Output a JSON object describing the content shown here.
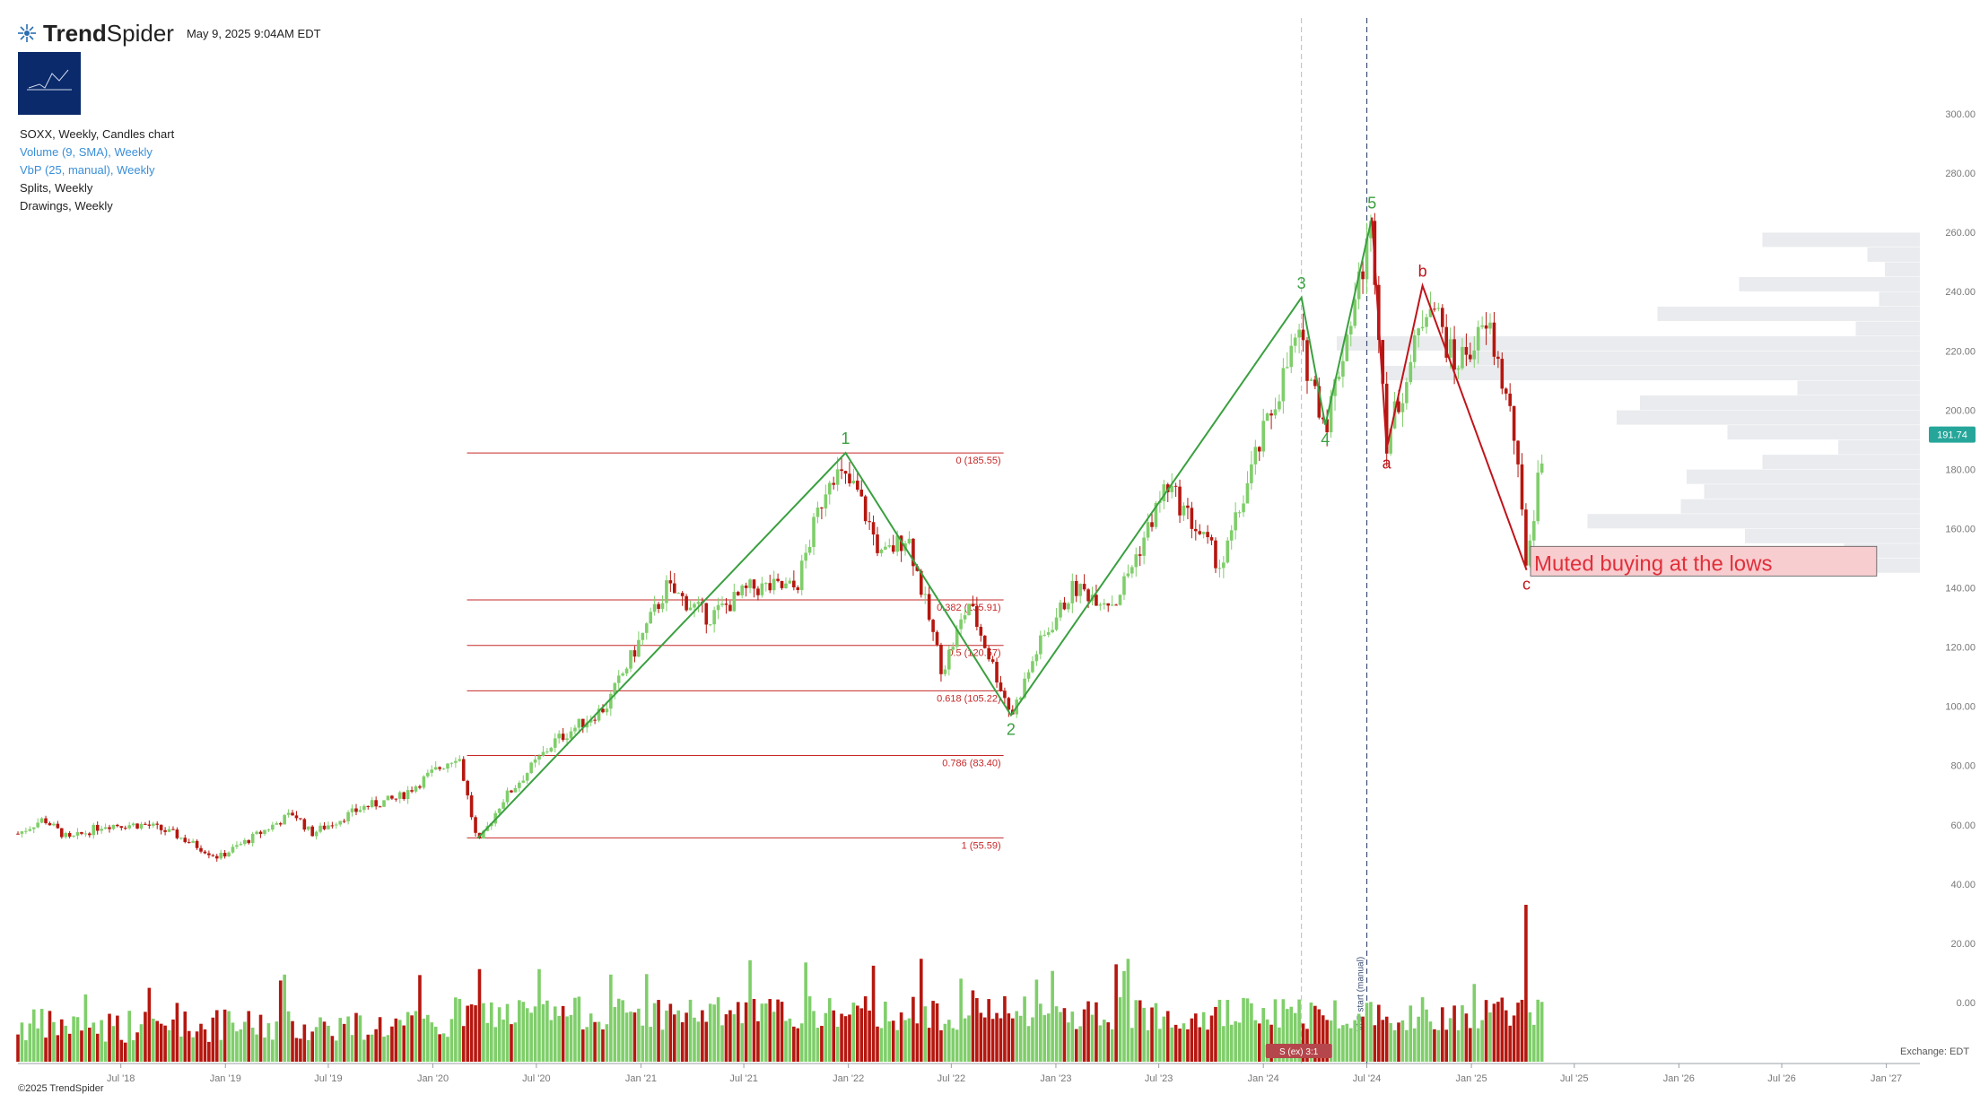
{
  "header": {
    "brand_bold": "Trend",
    "brand_light": "Spider",
    "timestamp": "May 9, 2025 9:04AM EDT"
  },
  "legend": {
    "title": "SOXX, Weekly, Candles chart",
    "volume": "Volume (9, SMA), Weekly",
    "vbp": "VbP (25, manual), Weekly",
    "splits": "Splits, Weekly",
    "drawings": "Drawings, Weekly"
  },
  "footer": {
    "copyright": "©2025 TrendSpider",
    "exchange": "Exchange: EDT"
  },
  "colors": {
    "up": "#7fce6a",
    "down": "#b5170f",
    "wave_green": "#3aa040",
    "wave_red": "#c0141a",
    "fib_line": "#c62828",
    "last_price_badge": "#26a69a",
    "vbp_bar": "#e3e6ea"
  },
  "chart_data": {
    "type": "candlestick",
    "symbol": "SOXX",
    "interval": "Weekly",
    "y_axis": {
      "range": [
        -25,
        310
      ],
      "ticks": [
        0,
        20,
        40,
        60,
        80,
        100,
        120,
        140,
        160,
        180,
        200,
        220,
        240,
        260,
        280,
        300
      ],
      "tick_labels": [
        "0.00",
        "20.00",
        "40.00",
        "60.00",
        "80.00",
        "100.00",
        "120.00",
        "140.00",
        "160.00",
        "180.00",
        "200.00",
        "220.00",
        "240.00",
        "260.00",
        "280.00",
        "300.00"
      ]
    },
    "x_axis": {
      "range": [
        "2018-01-01",
        "2027-03-01"
      ],
      "ticks": [
        {
          "date": "2018-07-01",
          "label": "Jul '18"
        },
        {
          "date": "2019-01-01",
          "label": "Jan '19"
        },
        {
          "date": "2019-07-01",
          "label": "Jul '19"
        },
        {
          "date": "2020-01-01",
          "label": "Jan '20"
        },
        {
          "date": "2020-07-01",
          "label": "Jul '20"
        },
        {
          "date": "2021-01-01",
          "label": "Jan '21"
        },
        {
          "date": "2021-07-01",
          "label": "Jul '21"
        },
        {
          "date": "2022-01-01",
          "label": "Jan '22"
        },
        {
          "date": "2022-07-01",
          "label": "Jul '22"
        },
        {
          "date": "2023-01-01",
          "label": "Jan '23"
        },
        {
          "date": "2023-07-01",
          "label": "Jul '23"
        },
        {
          "date": "2024-01-01",
          "label": "Jan '24"
        },
        {
          "date": "2024-07-01",
          "label": "Jul '24"
        },
        {
          "date": "2025-01-01",
          "label": "Jan '25"
        },
        {
          "date": "2025-07-01",
          "label": "Jul '25"
        },
        {
          "date": "2026-01-01",
          "label": "Jan '26"
        },
        {
          "date": "2026-07-01",
          "label": "Jul '26"
        },
        {
          "date": "2027-01-01",
          "label": "Jan '27"
        }
      ]
    },
    "price_path": [
      [
        "2018-01-01",
        57
      ],
      [
        "2018-02-15",
        62
      ],
      [
        "2018-04-01",
        55
      ],
      [
        "2018-06-01",
        60
      ],
      [
        "2018-08-15",
        60
      ],
      [
        "2018-10-01",
        57
      ],
      [
        "2018-12-20",
        49
      ],
      [
        "2019-03-01",
        57
      ],
      [
        "2019-05-01",
        64
      ],
      [
        "2019-06-01",
        57
      ],
      [
        "2019-09-01",
        66
      ],
      [
        "2019-11-01",
        69
      ],
      [
        "2020-02-15",
        84
      ],
      [
        "2020-03-20",
        53
      ],
      [
        "2020-05-01",
        68
      ],
      [
        "2020-08-01",
        88
      ],
      [
        "2020-11-01",
        100
      ],
      [
        "2021-02-15",
        140
      ],
      [
        "2021-05-01",
        130
      ],
      [
        "2021-07-15",
        140
      ],
      [
        "2021-10-01",
        140
      ],
      [
        "2021-12-01",
        180
      ],
      [
        "2022-01-15",
        173
      ],
      [
        "2022-03-01",
        150
      ],
      [
        "2022-04-15",
        158
      ],
      [
        "2022-06-15",
        112
      ],
      [
        "2022-08-01",
        135
      ],
      [
        "2022-10-15",
        97
      ],
      [
        "2022-12-01",
        120
      ],
      [
        "2023-02-01",
        140
      ],
      [
        "2023-04-15",
        135
      ],
      [
        "2023-06-01",
        155
      ],
      [
        "2023-07-15",
        175
      ],
      [
        "2023-10-20",
        147
      ],
      [
        "2023-12-20",
        185
      ],
      [
        "2024-03-01",
        225
      ],
      [
        "2024-04-20",
        195
      ],
      [
        "2024-06-01",
        230
      ],
      [
        "2024-07-10",
        262
      ],
      [
        "2024-08-05",
        190
      ],
      [
        "2024-09-15",
        215
      ],
      [
        "2024-10-20",
        240
      ],
      [
        "2024-12-01",
        215
      ],
      [
        "2025-02-01",
        228
      ],
      [
        "2025-03-15",
        195
      ],
      [
        "2025-04-08",
        148
      ],
      [
        "2025-05-09",
        191.74
      ]
    ],
    "last_price": 191.74,
    "last_price_label": "191.74",
    "volume_max_bar_date": "2025-04-08",
    "fibonacci": {
      "start": "2020-03-01",
      "end": "2022-10-01",
      "levels": [
        {
          "ratio": 0,
          "price": 185.55,
          "label": "0 (185.55)"
        },
        {
          "ratio": 0.382,
          "price": 135.91,
          "label": "0.382 (135.91)"
        },
        {
          "ratio": 0.5,
          "price": 120.57,
          "label": "0.5 (120.57)"
        },
        {
          "ratio": 0.618,
          "price": 105.22,
          "label": "0.618 (105.22)"
        },
        {
          "ratio": 0.786,
          "price": 83.4,
          "label": "0.786 (83.40)"
        },
        {
          "ratio": 1,
          "price": 55.59,
          "label": "1 (55.59)"
        }
      ]
    },
    "impulse_wave": [
      {
        "date": "2020-03-20",
        "price": 55.59,
        "label": ""
      },
      {
        "date": "2021-12-27",
        "price": 185.55,
        "label": "1"
      },
      {
        "date": "2022-10-14",
        "price": 97,
        "label": "2"
      },
      {
        "date": "2024-03-08",
        "price": 238,
        "label": "3"
      },
      {
        "date": "2024-04-19",
        "price": 195,
        "label": "4"
      },
      {
        "date": "2024-07-10",
        "price": 265,
        "label": "5"
      }
    ],
    "corrective_wave": [
      {
        "date": "2024-07-10",
        "price": 265,
        "label": ""
      },
      {
        "date": "2024-08-05",
        "price": 187,
        "label": "a"
      },
      {
        "date": "2024-10-07",
        "price": 242,
        "label": "b"
      },
      {
        "date": "2025-04-08",
        "price": 146,
        "label": "c"
      }
    ],
    "annotation": {
      "text": "Muted buying at the lows",
      "date_start": "2025-04-15",
      "date_end": "2026-12-15",
      "price_low": 144,
      "price_high": 154
    },
    "markers": [
      {
        "date": "2024-03-08",
        "style": "dashed-light",
        "label": ""
      },
      {
        "date": "2024-07-01",
        "style": "dashed-dark",
        "label": "VbP start (manual)"
      }
    ],
    "split_label": "S (ex) 3:1",
    "vbp_profile": [
      [
        257.5,
        0.27
      ],
      [
        252.5,
        0.09
      ],
      [
        247.5,
        0.06
      ],
      [
        242.5,
        0.31
      ],
      [
        237.5,
        0.07
      ],
      [
        232.5,
        0.45
      ],
      [
        227.5,
        0.11
      ],
      [
        222.5,
        1.0
      ],
      [
        217.5,
        0.78
      ],
      [
        212.5,
        0.92
      ],
      [
        207.5,
        0.21
      ],
      [
        202.5,
        0.48
      ],
      [
        197.5,
        0.52
      ],
      [
        192.5,
        0.33
      ],
      [
        187.5,
        0.14
      ],
      [
        182.5,
        0.27
      ],
      [
        177.5,
        0.4
      ],
      [
        172.5,
        0.37
      ],
      [
        167.5,
        0.41
      ],
      [
        162.5,
        0.57
      ],
      [
        157.5,
        0.3
      ],
      [
        152.5,
        0.13
      ],
      [
        147.5,
        0.08
      ]
    ]
  }
}
